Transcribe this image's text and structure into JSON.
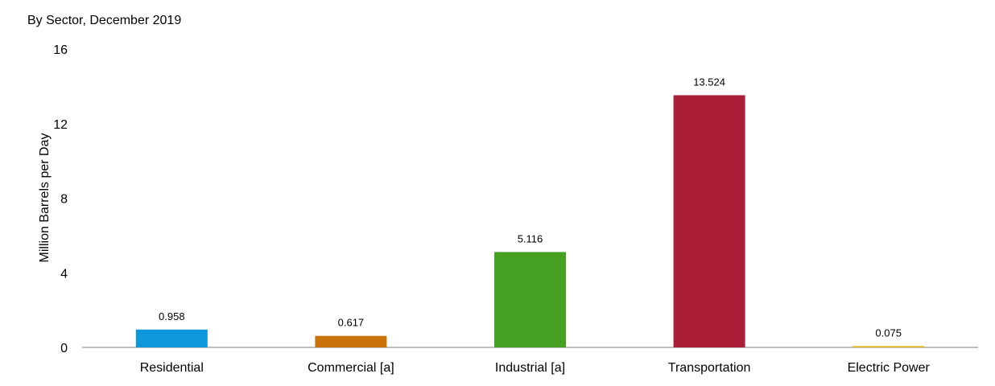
{
  "chart_data": {
    "type": "bar",
    "subtitle": "By Sector, December 2019",
    "ylabel": "Million Barrels per Day",
    "xlabel": "",
    "ylim": [
      0,
      16
    ],
    "yticks": [
      "0",
      "4",
      "8",
      "12",
      "16"
    ],
    "categories": [
      "Residential",
      "Commercial [a]",
      "Industrial [a]",
      "Transportation",
      "Electric Power"
    ],
    "values": [
      0.958,
      0.617,
      5.116,
      13.524,
      0.075
    ],
    "value_labels": [
      "0.958",
      "0.617",
      "5.116",
      "13.524",
      "0.075"
    ],
    "colors": [
      "#0f97de",
      "#c9730a",
      "#46a021",
      "#ab1e38",
      "#e8b920"
    ],
    "grid": false,
    "legend": "none"
  }
}
